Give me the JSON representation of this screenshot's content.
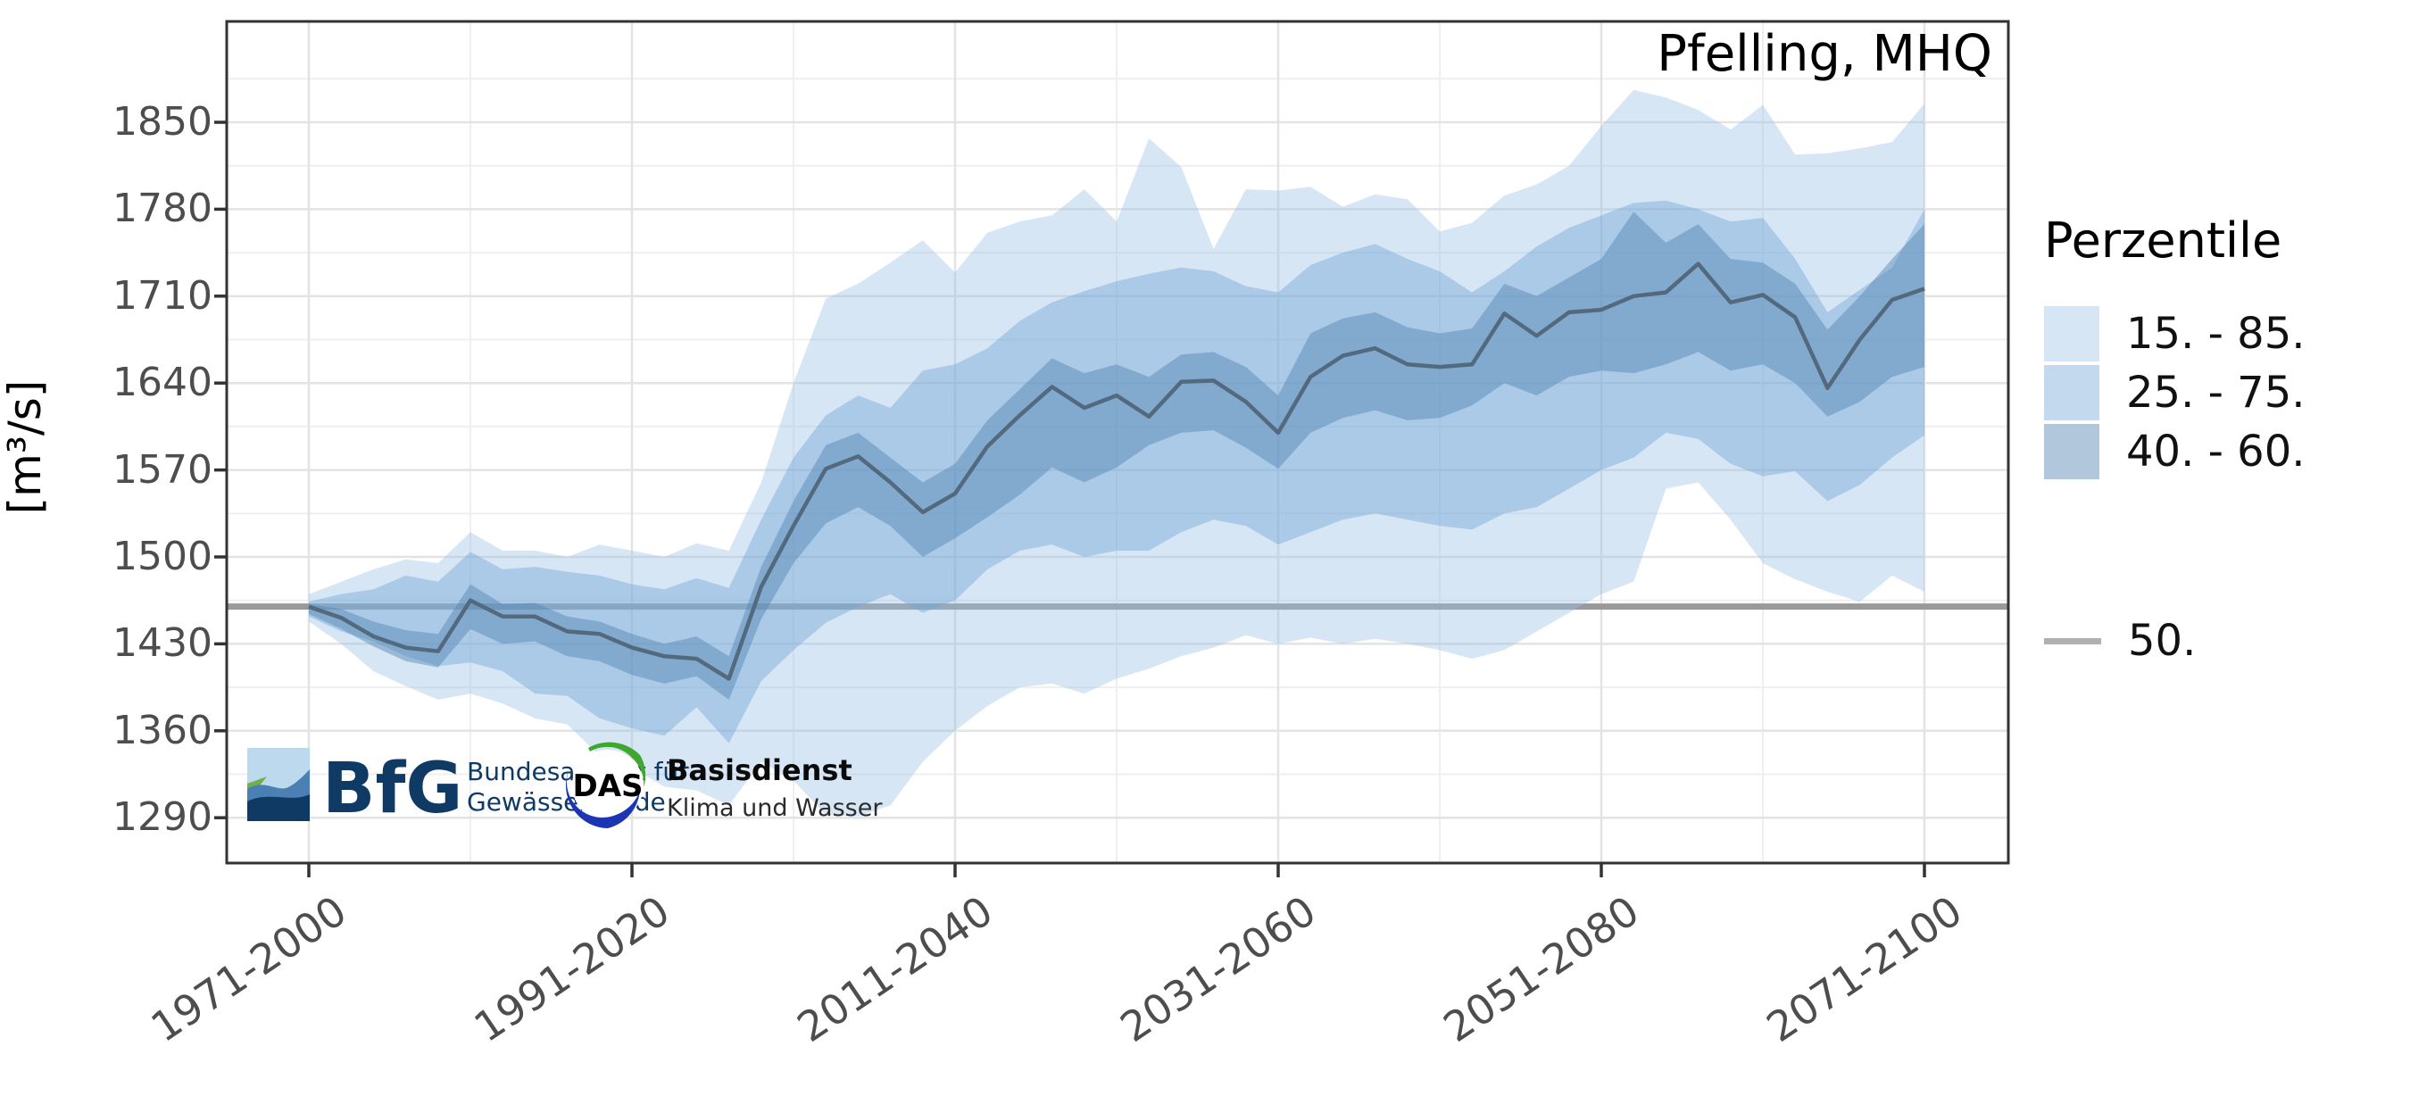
{
  "title": "Pfelling, MHQ",
  "legend": {
    "title": "Perzentile",
    "line_item": {
      "label": "50.",
      "color": "#b0b0b0"
    }
  },
  "colors": {
    "median_line": "#53697d",
    "reference_line": "#999999",
    "grid_major": "#e3e3e3",
    "grid_minor": "#efefef",
    "panel_border": "#333333",
    "tick_text": "#4d4d4d"
  },
  "logos": {
    "bfg_abbr": "BfG",
    "bfg_line1": "Bundesanstalt für",
    "bfg_line2": "Gewässerkunde",
    "das_abbr": "DAS",
    "das_line1": "Basisdienst",
    "das_line2": "Klima und Wasser"
  },
  "chart_data": {
    "type": "area",
    "title": "Pfelling, MHQ",
    "ylabel": "[m³/s]",
    "legend_position": "right",
    "grid": true,
    "x_axis": {
      "tick_labels": [
        "1971-2000",
        "1991-2020",
        "2011-2040",
        "2031-2060",
        "2051-2080",
        "2071-2100"
      ],
      "tick_years": [
        1971,
        1991,
        2011,
        2031,
        2051,
        2071
      ],
      "range_years": [
        1965.9,
        2076.2
      ]
    },
    "y_axis": {
      "title": "[m³/s]",
      "ticks": [
        1850,
        1780,
        1710,
        1640,
        1570,
        1500,
        1430,
        1360,
        1290
      ],
      "minor_offset": 35,
      "range": [
        1253,
        1931
      ]
    },
    "reference_line": {
      "label": "50.",
      "value": 1460,
      "color": "#999999"
    },
    "x_years": [
      1971,
      1973,
      1975,
      1977,
      1979,
      1981,
      1983,
      1985,
      1987,
      1989,
      1991,
      1993,
      1995,
      1997,
      1999,
      2001,
      2003,
      2005,
      2007,
      2009,
      2011,
      2013,
      2015,
      2017,
      2019,
      2021,
      2023,
      2025,
      2027,
      2029,
      2031,
      2033,
      2035,
      2037,
      2039,
      2041,
      2043,
      2045,
      2047,
      2049,
      2051,
      2053,
      2055,
      2057,
      2059,
      2061,
      2063,
      2065,
      2067,
      2069,
      2071
    ],
    "percentiles": {
      "p15": [
        1448,
        1430,
        1408,
        1396,
        1385,
        1390,
        1382,
        1370,
        1365,
        1340,
        1330,
        1315,
        1312,
        1300,
        1335,
        1320,
        1292,
        1291,
        1300,
        1335,
        1360,
        1380,
        1395,
        1398,
        1390,
        1402,
        1410,
        1420,
        1427,
        1437,
        1430,
        1435,
        1430,
        1434,
        1430,
        1425,
        1418,
        1425,
        1440,
        1455,
        1470,
        1480,
        1555,
        1560,
        1530,
        1495,
        1482,
        1472,
        1464,
        1485,
        1472
      ],
      "p25": [
        1452,
        1440,
        1432,
        1420,
        1412,
        1415,
        1408,
        1390,
        1388,
        1370,
        1362,
        1356,
        1379,
        1350,
        1400,
        1425,
        1447,
        1460,
        1470,
        1455,
        1465,
        1490,
        1505,
        1510,
        1500,
        1505,
        1505,
        1520,
        1530,
        1525,
        1510,
        1520,
        1530,
        1535,
        1530,
        1525,
        1522,
        1535,
        1540,
        1555,
        1570,
        1580,
        1600,
        1595,
        1575,
        1565,
        1569,
        1545,
        1558,
        1580,
        1598
      ],
      "p40": [
        1454,
        1442,
        1428,
        1416,
        1411,
        1442,
        1430,
        1432,
        1420,
        1416,
        1405,
        1398,
        1404,
        1385,
        1450,
        1495,
        1527,
        1540,
        1525,
        1500,
        1515,
        1532,
        1550,
        1572,
        1560,
        1572,
        1590,
        1600,
        1602,
        1588,
        1571,
        1600,
        1612,
        1618,
        1610,
        1612,
        1622,
        1640,
        1630,
        1645,
        1650,
        1648,
        1655,
        1665,
        1650,
        1655,
        1640,
        1613,
        1625,
        1645,
        1653
      ],
      "p50": [
        1460,
        1451,
        1436,
        1427,
        1424,
        1465,
        1452,
        1452,
        1440,
        1438,
        1427,
        1420,
        1418,
        1402,
        1476,
        1525,
        1571,
        1581,
        1560,
        1536,
        1551,
        1589,
        1614,
        1637,
        1620,
        1630,
        1613,
        1641,
        1642,
        1625,
        1600,
        1645,
        1662,
        1668,
        1655,
        1653,
        1655,
        1696,
        1678,
        1697,
        1699,
        1710,
        1713,
        1736,
        1705,
        1711,
        1693,
        1636,
        1675,
        1707,
        1716
      ],
      "p60": [
        1462,
        1458,
        1448,
        1441,
        1438,
        1478,
        1462,
        1463,
        1452,
        1448,
        1438,
        1430,
        1436,
        1420,
        1492,
        1545,
        1590,
        1600,
        1580,
        1560,
        1575,
        1610,
        1635,
        1660,
        1648,
        1655,
        1645,
        1663,
        1665,
        1653,
        1630,
        1680,
        1692,
        1697,
        1685,
        1680,
        1684,
        1720,
        1710,
        1725,
        1740,
        1778,
        1753,
        1768,
        1740,
        1737,
        1720,
        1683,
        1710,
        1740,
        1768
      ],
      "p75": [
        1464,
        1470,
        1474,
        1485,
        1480,
        1504,
        1490,
        1492,
        1488,
        1485,
        1478,
        1474,
        1483,
        1475,
        1530,
        1580,
        1614,
        1630,
        1620,
        1650,
        1655,
        1668,
        1690,
        1705,
        1714,
        1722,
        1728,
        1733,
        1730,
        1718,
        1713,
        1735,
        1745,
        1752,
        1740,
        1730,
        1713,
        1730,
        1750,
        1765,
        1775,
        1785,
        1787,
        1780,
        1770,
        1773,
        1740,
        1697,
        1715,
        1733,
        1780
      ],
      "p85": [
        1470,
        1480,
        1490,
        1498,
        1495,
        1520,
        1505,
        1505,
        1500,
        1510,
        1505,
        1500,
        1511,
        1505,
        1560,
        1640,
        1708,
        1720,
        1737,
        1755,
        1729,
        1761,
        1770,
        1775,
        1796,
        1770,
        1837,
        1814,
        1748,
        1796,
        1795,
        1798,
        1782,
        1792,
        1788,
        1762,
        1769,
        1791,
        1800,
        1815,
        1847,
        1876,
        1870,
        1860,
        1844,
        1864,
        1824,
        1825,
        1829,
        1834,
        1865
      ]
    },
    "bands": [
      {
        "label": "15. - 85.",
        "upper": "p85",
        "lower": "p15",
        "color": "#98c0e3",
        "opacity": 0.4
      },
      {
        "label": "25. - 75.",
        "upper": "p75",
        "lower": "p25",
        "color": "#6ea4d6",
        "opacity": 0.42
      },
      {
        "label": "40. - 60.",
        "upper": "p60",
        "lower": "p40",
        "color": "#5283b2",
        "opacity": 0.45
      }
    ],
    "median": {
      "label": "50.",
      "series": "p50",
      "color": "#53697d"
    }
  }
}
